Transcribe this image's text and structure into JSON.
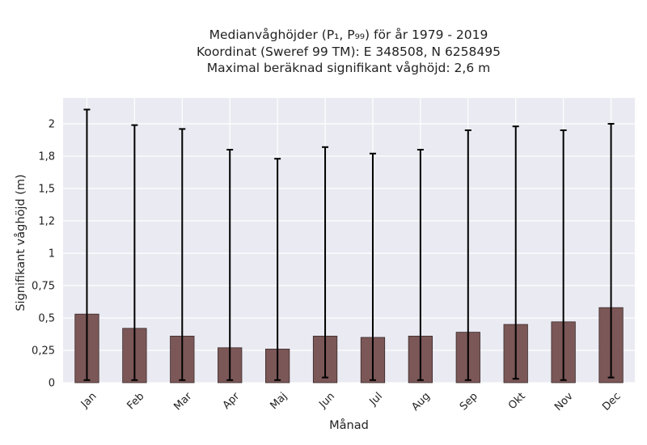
{
  "chart_data": {
    "type": "bar",
    "title_lines": [
      "Medianvåghöjder (P₁, P₉₉) för år 1979 - 2019",
      "Koordinat (Sweref 99 TM): E 348508, N 6258495",
      "Maximal beräknad signifikant våghöjd: 2,6 m"
    ],
    "xlabel": "Månad",
    "ylabel": "Signifikant våghöjd (m)",
    "categories": [
      "Jan",
      "Feb",
      "Mar",
      "Apr",
      "Maj",
      "Jun",
      "Jul",
      "Aug",
      "Sep",
      "Okt",
      "Nov",
      "Dec"
    ],
    "values": [
      0.53,
      0.42,
      0.36,
      0.27,
      0.26,
      0.36,
      0.35,
      0.36,
      0.39,
      0.45,
      0.47,
      0.58
    ],
    "p1": [
      0.02,
      0.02,
      0.02,
      0.02,
      0.02,
      0.04,
      0.02,
      0.02,
      0.02,
      0.03,
      0.02,
      0.04
    ],
    "p99": [
      2.11,
      1.99,
      1.96,
      1.8,
      1.73,
      1.82,
      1.77,
      1.8,
      1.95,
      1.98,
      1.95,
      2.0
    ],
    "yticks": [
      0,
      0.25,
      0.5,
      0.75,
      1,
      1.25,
      1.5,
      1.75,
      2
    ],
    "ytick_labels": [
      "0",
      "0,25",
      "0,5",
      "0,75",
      "1",
      "1,2",
      "1,5",
      "1,8",
      "2"
    ],
    "ylim": [
      0,
      2.2
    ],
    "grid": true,
    "colors": {
      "bar": "#7b5757",
      "bar_edge": "#3a2a2a",
      "error_bar": "#000000",
      "plot_bg": "#eaeaf2",
      "grid": "#ffffff"
    }
  }
}
